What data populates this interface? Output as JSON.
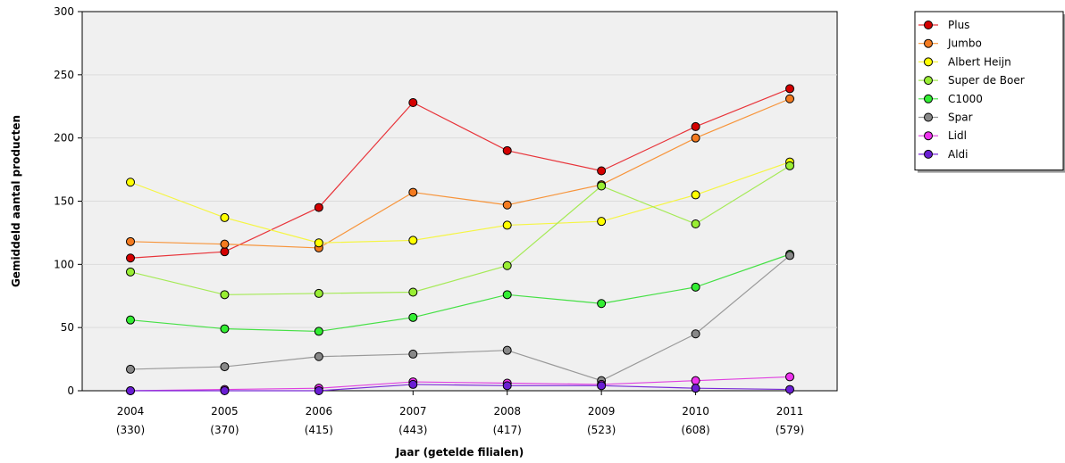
{
  "chart_data": {
    "type": "line",
    "title": "",
    "xlabel": "Jaar (getelde filialen)",
    "ylabel": "Gemiddeld aantal producten",
    "ylim": [
      0,
      300
    ],
    "yticks": [
      "0",
      "50",
      "100",
      "150",
      "200",
      "250",
      "300"
    ],
    "grid": true,
    "legend_position": "top-right",
    "categories": [
      {
        "year": "2004",
        "count": "(330)"
      },
      {
        "year": "2005",
        "count": "(370)"
      },
      {
        "year": "2006",
        "count": "(415)"
      },
      {
        "year": "2007",
        "count": "(443)"
      },
      {
        "year": "2008",
        "count": "(417)"
      },
      {
        "year": "2009",
        "count": "(523)"
      },
      {
        "year": "2010",
        "count": "(608)"
      },
      {
        "year": "2011",
        "count": "(579)"
      }
    ],
    "series": [
      {
        "name": "Plus",
        "color": "#e8343a",
        "marker": "#d40000",
        "values": [
          105,
          110,
          145,
          228,
          190,
          174,
          209,
          239
        ]
      },
      {
        "name": "Jumbo",
        "color": "#f7943a",
        "marker": "#f47b20",
        "values": [
          118,
          116,
          113,
          157,
          147,
          163,
          200,
          231
        ]
      },
      {
        "name": "Albert Heijn",
        "color": "#f5f542",
        "marker": "#ffff00",
        "values": [
          165,
          137,
          117,
          119,
          131,
          134,
          155,
          181
        ]
      },
      {
        "name": "Super de Boer",
        "color": "#a5ea56",
        "marker": "#99ee33",
        "values": [
          94,
          76,
          77,
          78,
          99,
          162,
          132,
          178
        ]
      },
      {
        "name": "C1000",
        "color": "#45e045",
        "marker": "#33ee33",
        "values": [
          56,
          49,
          47,
          58,
          76,
          69,
          82,
          108
        ]
      },
      {
        "name": "Spar",
        "color": "#999999",
        "marker": "#888888",
        "values": [
          17,
          19,
          27,
          29,
          32,
          8,
          45,
          107
        ]
      },
      {
        "name": "Lidl",
        "color": "#e040e0",
        "marker": "#ee33ee",
        "values": [
          0,
          1,
          2,
          7,
          6,
          5,
          8,
          11
        ]
      },
      {
        "name": "Aldi",
        "color": "#7a2ad8",
        "marker": "#6a1ed4",
        "values": [
          0,
          0,
          0,
          5,
          4,
          4,
          2,
          1
        ]
      }
    ]
  }
}
